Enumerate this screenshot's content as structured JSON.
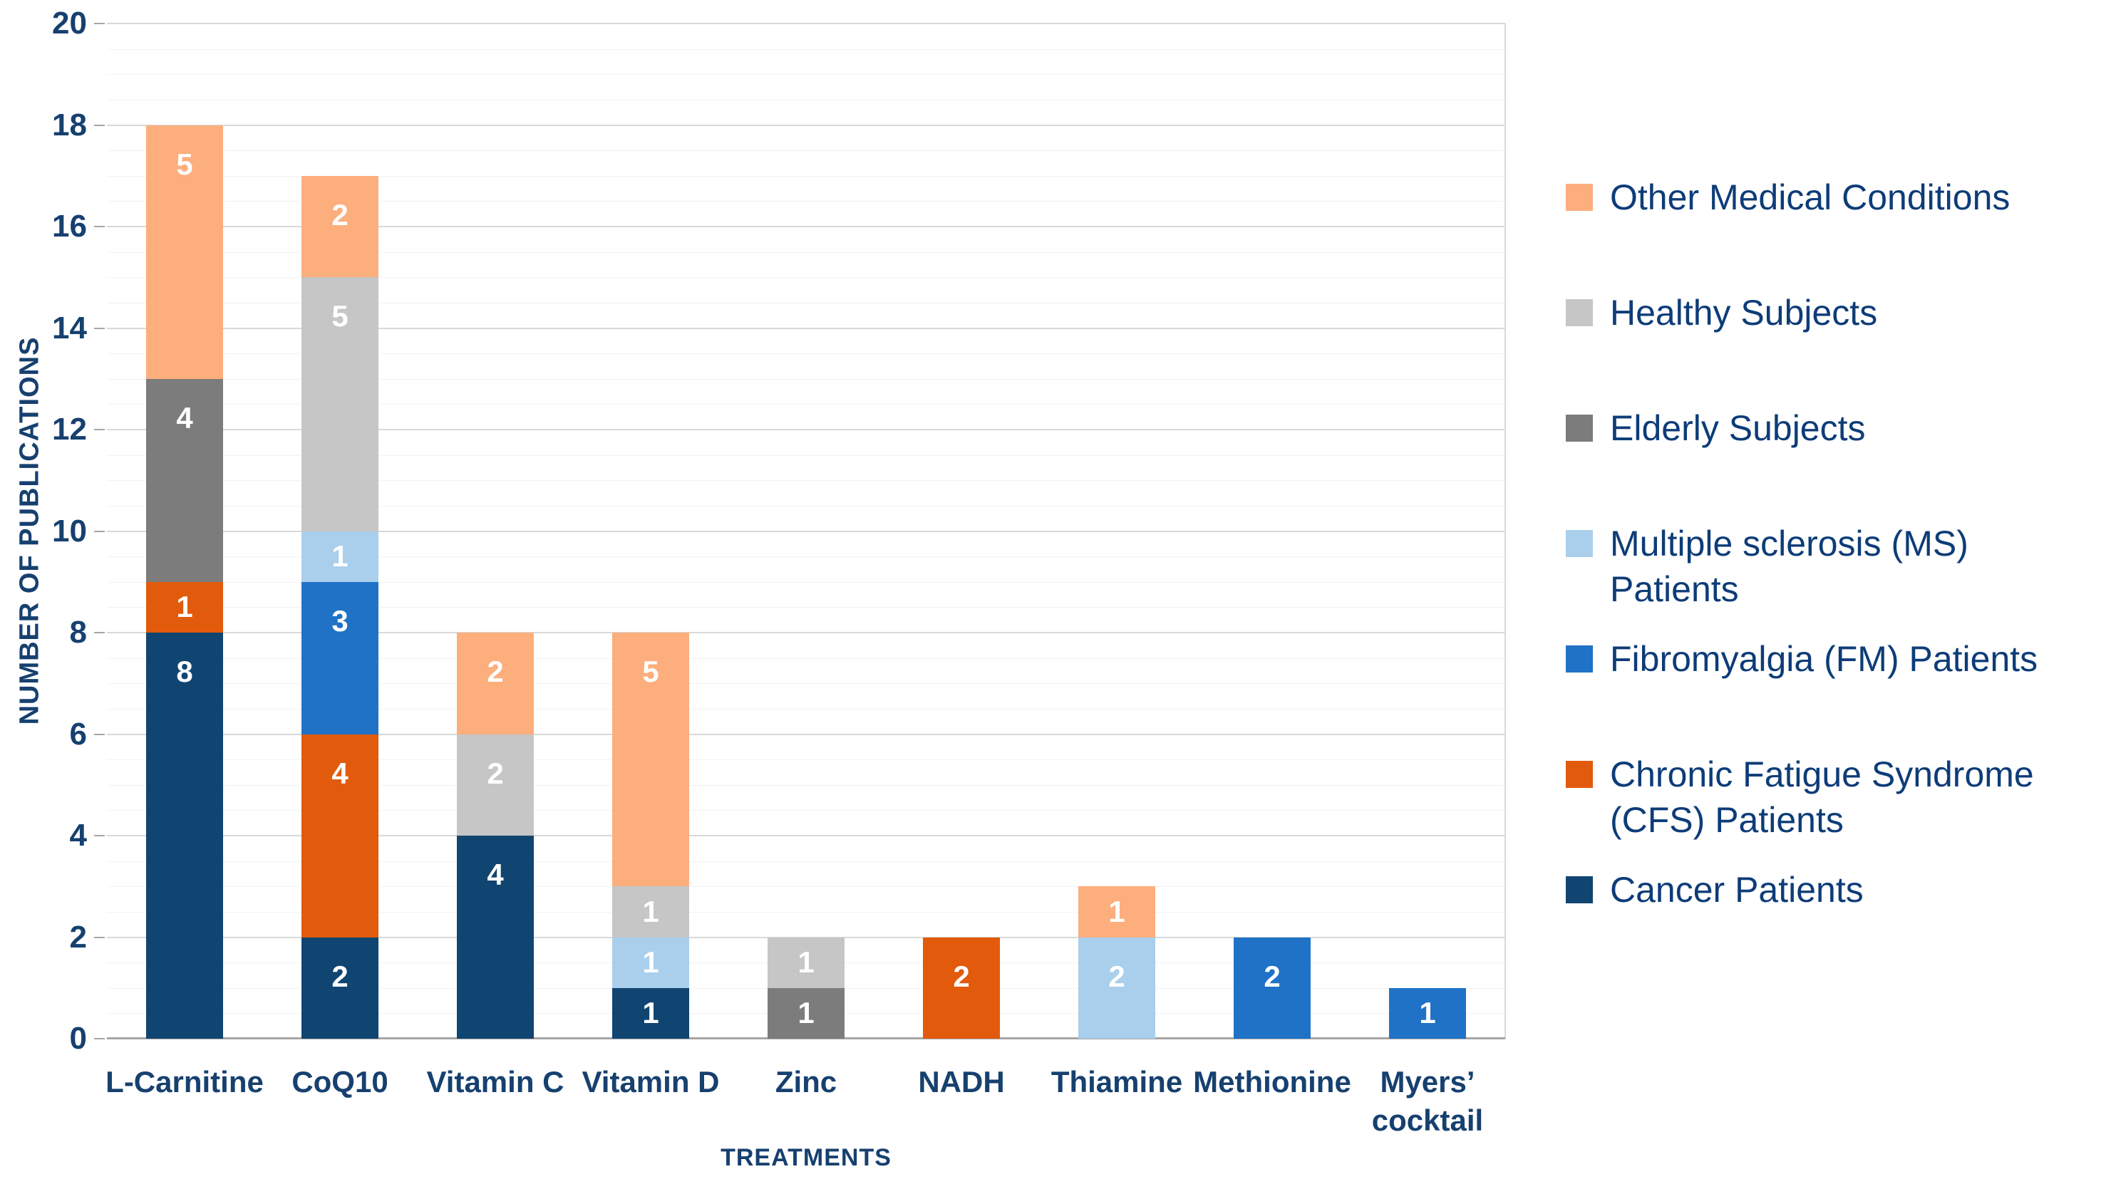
{
  "chart_data": {
    "type": "bar",
    "stacked": true,
    "title": "",
    "xlabel": "TREATMENTS",
    "ylabel": "NUMBER OF PUBLICATIONS",
    "ylim": [
      0,
      20
    ],
    "ytick_step": 2,
    "yminor_step": 0.5,
    "grid": true,
    "legend_position": "right",
    "categories": [
      "L-Carnitine",
      "CoQ10",
      "Vitamin C",
      "Vitamin D",
      "Zinc",
      "NADH",
      "Thiamine",
      "Methionine",
      "Myers’ cocktail"
    ],
    "xtick_labels": [
      "L-Carnitine",
      "CoQ10",
      "Vitamin C",
      "Vitamin D",
      "Zinc",
      "NADH",
      "Thiamine",
      "Methionine",
      "Myers’\ncocktail"
    ],
    "series": [
      {
        "name": "Cancer Patients",
        "color": "#114571",
        "values": [
          8,
          2,
          4,
          1,
          0,
          0,
          0,
          0,
          0
        ]
      },
      {
        "name": "Chronic Fatigue Syndrome (CFS) Patients",
        "color": "#E25A0C",
        "values": [
          1,
          4,
          0,
          0,
          0,
          2,
          0,
          0,
          0
        ]
      },
      {
        "name": "Fibromyalgia (FM) Patients",
        "color": "#1F72C6",
        "values": [
          0,
          3,
          0,
          0,
          0,
          0,
          0,
          2,
          1
        ]
      },
      {
        "name": "Multiple sclerosis (MS) Patients",
        "color": "#A9CFEC",
        "values": [
          0,
          1,
          0,
          1,
          0,
          0,
          2,
          0,
          0
        ]
      },
      {
        "name": "Elderly Subjects",
        "color": "#7C7C7C",
        "values": [
          4,
          0,
          0,
          0,
          1,
          0,
          0,
          0,
          0
        ]
      },
      {
        "name": "Healthy Subjects",
        "color": "#C6C6C6",
        "values": [
          0,
          5,
          2,
          1,
          1,
          0,
          0,
          0,
          0
        ]
      },
      {
        "name": "Other Medical Conditions",
        "color": "#FCAE7D",
        "values": [
          5,
          2,
          2,
          5,
          0,
          0,
          1,
          0,
          0
        ]
      }
    ],
    "legend": [
      {
        "label": "Other Medical Conditions",
        "color": "#FCAE7D"
      },
      {
        "label": "Healthy Subjects",
        "color": "#C6C6C6"
      },
      {
        "label": "Elderly Subjects",
        "color": "#7C7C7C"
      },
      {
        "label": "Multiple sclerosis (MS)\nPatients",
        "color": "#A9CFEC"
      },
      {
        "label": "Fibromyalgia (FM) Patients",
        "color": "#1F72C6"
      },
      {
        "label": "Chronic Fatigue Syndrome\n(CFS) Patients",
        "color": "#E25A0C"
      },
      {
        "label": "Cancer Patients",
        "color": "#114571"
      }
    ],
    "colors": {
      "axis_text": "#16406F",
      "legend_text": "#0D3C78",
      "data_label": "#FFFFFF",
      "gridline_major": "#D9D9D9",
      "gridline_minor": "#F2F2F2",
      "axis_line": "#A6A6A6",
      "background": "#FFFFFF"
    }
  }
}
